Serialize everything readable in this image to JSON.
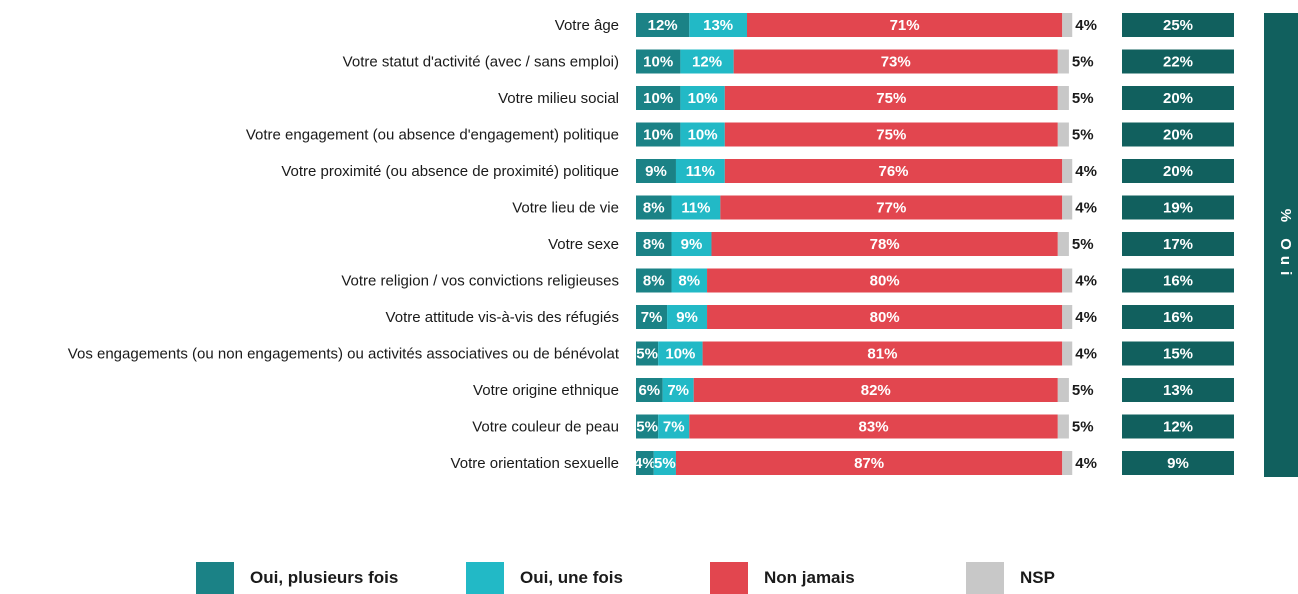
{
  "chart_data": {
    "type": "bar",
    "stacked": true,
    "orientation": "horizontal",
    "categories": [
      "Votre âge",
      "Votre statut d'activité (avec / sans emploi)",
      "Votre milieu social",
      "Votre engagement (ou absence d'engagement) politique",
      "Votre proximité (ou absence de proximité) politique",
      "Votre lieu de vie",
      "Votre sexe",
      "Votre religion / vos convictions religieuses",
      "Votre attitude vis-à-vis des réfugiés",
      "Vos engagements (ou non engagements) ou activités associatives ou de bénévolat",
      "Votre origine ethnique",
      "Votre couleur de peau",
      "Votre orientation sexuelle"
    ],
    "series": [
      {
        "name": "Oui, plusieurs fois",
        "color": "#1b8286",
        "values": [
          12,
          10,
          10,
          10,
          9,
          8,
          8,
          8,
          7,
          5,
          6,
          5,
          4
        ]
      },
      {
        "name": "Oui, une fois",
        "color": "#22b9c6",
        "values": [
          13,
          12,
          10,
          10,
          11,
          11,
          9,
          8,
          9,
          10,
          7,
          7,
          5
        ]
      },
      {
        "name": "Non jamais",
        "color": "#e2464f",
        "values": [
          71,
          73,
          75,
          75,
          76,
          77,
          78,
          80,
          80,
          81,
          82,
          83,
          87
        ]
      },
      {
        "name": "NSP",
        "color": "#c8c8c8",
        "values": [
          4,
          5,
          5,
          5,
          4,
          4,
          5,
          4,
          4,
          4,
          5,
          5,
          4
        ]
      }
    ],
    "totals": {
      "label": "% Oui",
      "color": "#11605e",
      "values": [
        25,
        22,
        20,
        20,
        20,
        19,
        17,
        16,
        16,
        15,
        13,
        12,
        9
      ]
    },
    "value_suffix": "%",
    "legend": "bottom"
  }
}
